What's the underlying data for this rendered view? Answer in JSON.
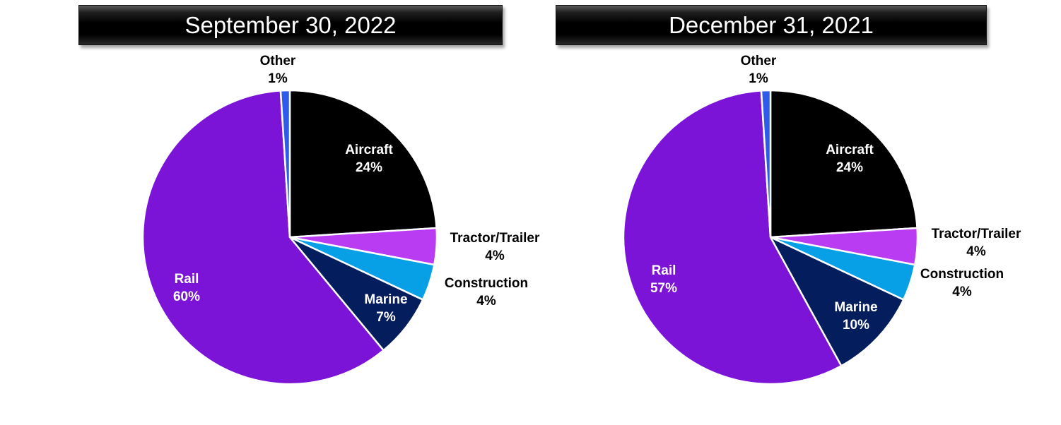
{
  "chart_data": [
    {
      "type": "pie",
      "title": "September 30, 2022",
      "slices": [
        {
          "label": "Aircraft",
          "value": 24,
          "value_label": "24%",
          "color": "#000000",
          "label_color": "#ffffff"
        },
        {
          "label": "Tractor/Trailer",
          "value": 4,
          "value_label": "4%",
          "color": "#b93bf2",
          "label_color": "#000000"
        },
        {
          "label": "Construction",
          "value": 4,
          "value_label": "4%",
          "color": "#079fe6",
          "label_color": "#000000"
        },
        {
          "label": "Marine",
          "value": 7,
          "value_label": "7%",
          "color": "#041d5c",
          "label_color": "#ffffff"
        },
        {
          "label": "Rail",
          "value": 60,
          "value_label": "60%",
          "color": "#7b14d6",
          "label_color": "#ffffff"
        },
        {
          "label": "Other",
          "value": 1,
          "value_label": "1%",
          "color": "#2f5bea",
          "label_color": "#000000"
        }
      ]
    },
    {
      "type": "pie",
      "title": "December 31, 2021",
      "slices": [
        {
          "label": "Aircraft",
          "value": 24,
          "value_label": "24%",
          "color": "#000000",
          "label_color": "#ffffff"
        },
        {
          "label": "Tractor/Trailer",
          "value": 4,
          "value_label": "4%",
          "color": "#b93bf2",
          "label_color": "#000000"
        },
        {
          "label": "Construction",
          "value": 4,
          "value_label": "4%",
          "color": "#079fe6",
          "label_color": "#000000"
        },
        {
          "label": "Marine",
          "value": 10,
          "value_label": "10%",
          "color": "#041d5c",
          "label_color": "#ffffff"
        },
        {
          "label": "Rail",
          "value": 57,
          "value_label": "57%",
          "color": "#7b14d6",
          "label_color": "#ffffff"
        },
        {
          "label": "Other",
          "value": 1,
          "value_label": "1%",
          "color": "#2f5bea",
          "label_color": "#000000"
        }
      ]
    }
  ]
}
